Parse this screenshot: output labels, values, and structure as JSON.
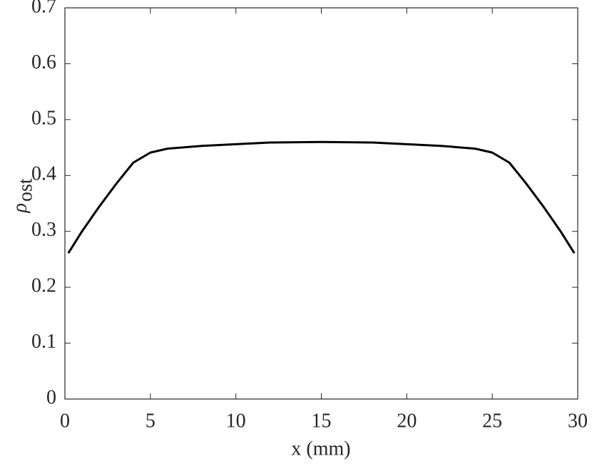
{
  "chart_data": {
    "type": "line",
    "xlabel": "x (mm)",
    "ylabel": "ρ",
    "ylabel_sub": "ost",
    "x": [
      0.2,
      1,
      2,
      3,
      4,
      5,
      6,
      8,
      10,
      12,
      15,
      18,
      20,
      22,
      24,
      25,
      26,
      27,
      28,
      29,
      29.8
    ],
    "series": [
      {
        "color": "#000000",
        "values": [
          0.261,
          0.3,
          0.344,
          0.385,
          0.423,
          0.441,
          0.448,
          0.453,
          0.456,
          0.459,
          0.46,
          0.459,
          0.456,
          0.453,
          0.448,
          0.441,
          0.423,
          0.385,
          0.344,
          0.3,
          0.261
        ]
      }
    ],
    "xlim": [
      0,
      30
    ],
    "xticks": [
      0,
      5,
      10,
      15,
      20,
      25,
      30
    ],
    "ylim": [
      0,
      0.7
    ],
    "yticks": [
      0,
      0.1,
      0.2,
      0.3,
      0.4,
      0.5,
      0.6,
      0.7
    ],
    "grid": false
  }
}
